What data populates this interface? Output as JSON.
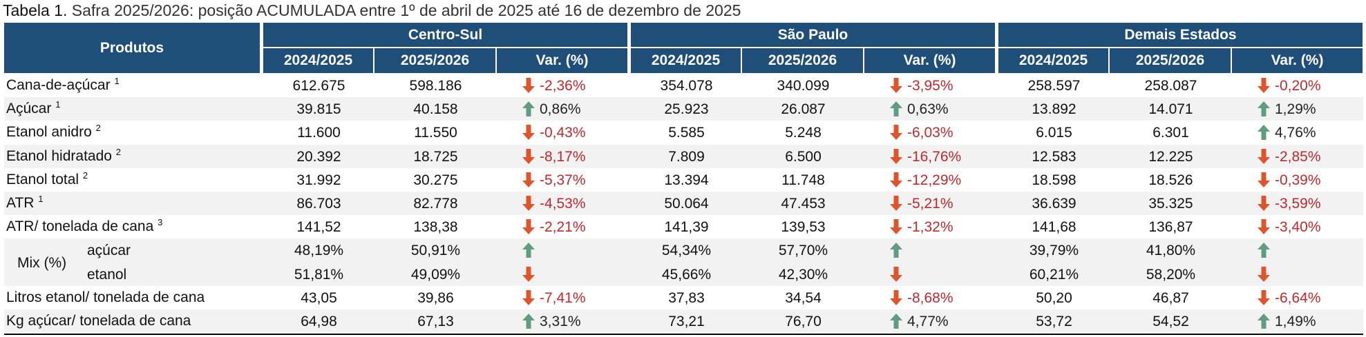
{
  "title_prefix": "Tabela 1.",
  "title": "Safra 2025/2026: posição ACUMULADA entre 1º de abril de 2025 até 16 de dezembro de 2025",
  "header": {
    "row_label": "Produtos",
    "groups": [
      {
        "name": "Centro-Sul",
        "columns": [
          "2024/2025",
          "2025/2026",
          "Var. (%)"
        ]
      },
      {
        "name": "São Paulo",
        "columns": [
          "2024/2025",
          "2025/2026",
          "Var. (%)"
        ]
      },
      {
        "name": "Demais Estados",
        "columns": [
          "2024/2025",
          "2025/2026",
          "Var. (%)"
        ]
      }
    ]
  },
  "rows": [
    {
      "label": "Cana-de-açúcar",
      "sup": "1",
      "cells": [
        {
          "a": "612.675",
          "b": "598.186",
          "var": "-2,36%",
          "trend": "down"
        },
        {
          "a": "354.078",
          "b": "340.099",
          "var": "-3,95%",
          "trend": "down"
        },
        {
          "a": "258.597",
          "b": "258.087",
          "var": "-0,20%",
          "trend": "down"
        }
      ]
    },
    {
      "label": "Açúcar",
      "sup": "1",
      "cells": [
        {
          "a": "39.815",
          "b": "40.158",
          "var": "0,86%",
          "trend": "up"
        },
        {
          "a": "25.923",
          "b": "26.087",
          "var": "0,63%",
          "trend": "up"
        },
        {
          "a": "13.892",
          "b": "14.071",
          "var": "1,29%",
          "trend": "up"
        }
      ]
    },
    {
      "label": "Etanol anidro",
      "sup": "2",
      "cells": [
        {
          "a": "11.600",
          "b": "11.550",
          "var": "-0,43%",
          "trend": "down"
        },
        {
          "a": "5.585",
          "b": "5.248",
          "var": "-6,03%",
          "trend": "down"
        },
        {
          "a": "6.015",
          "b": "6.301",
          "var": "4,76%",
          "trend": "up"
        }
      ]
    },
    {
      "label": "Etanol hidratado",
      "sup": "2",
      "cells": [
        {
          "a": "20.392",
          "b": "18.725",
          "var": "-8,17%",
          "trend": "down"
        },
        {
          "a": "7.809",
          "b": "6.500",
          "var": "-16,76%",
          "trend": "down"
        },
        {
          "a": "12.583",
          "b": "12.225",
          "var": "-2,85%",
          "trend": "down"
        }
      ]
    },
    {
      "label": "Etanol total",
      "sup": "2",
      "cells": [
        {
          "a": "31.992",
          "b": "30.275",
          "var": "-5,37%",
          "trend": "down"
        },
        {
          "a": "13.394",
          "b": "11.748",
          "var": "-12,29%",
          "trend": "down"
        },
        {
          "a": "18.598",
          "b": "18.526",
          "var": "-0,39%",
          "trend": "down"
        }
      ]
    },
    {
      "label": "ATR",
      "sup": "1",
      "cells": [
        {
          "a": "86.703",
          "b": "82.778",
          "var": "-4,53%",
          "trend": "down"
        },
        {
          "a": "50.064",
          "b": "47.453",
          "var": "-5,21%",
          "trend": "down"
        },
        {
          "a": "36.639",
          "b": "35.325",
          "var": "-3,59%",
          "trend": "down"
        }
      ]
    },
    {
      "label": "ATR/ tonelada de cana",
      "sup": "3",
      "cells": [
        {
          "a": "141,52",
          "b": "138,38",
          "var": "-2,21%",
          "trend": "down"
        },
        {
          "a": "141,39",
          "b": "139,53",
          "var": "-1,32%",
          "trend": "down"
        },
        {
          "a": "141,68",
          "b": "136,87",
          "var": "-3,40%",
          "trend": "down"
        }
      ]
    },
    {
      "label": "Mix (%)",
      "sub": [
        {
          "label": "açúcar",
          "cells": [
            {
              "a": "48,19%",
              "b": "50,91%",
              "trend": "up"
            },
            {
              "a": "54,34%",
              "b": "57,70%",
              "trend": "up"
            },
            {
              "a": "39,79%",
              "b": "41,80%",
              "trend": "up"
            }
          ]
        },
        {
          "label": "etanol",
          "cells": [
            {
              "a": "51,81%",
              "b": "49,09%",
              "trend": "down"
            },
            {
              "a": "45,66%",
              "b": "42,30%",
              "trend": "down"
            },
            {
              "a": "60,21%",
              "b": "58,20%",
              "trend": "down"
            }
          ]
        }
      ]
    },
    {
      "label": "Litros etanol/ tonelada de cana",
      "cells": [
        {
          "a": "43,05",
          "b": "39,86",
          "var": "-7,41%",
          "trend": "down"
        },
        {
          "a": "37,83",
          "b": "34,54",
          "var": "-8,68%",
          "trend": "down"
        },
        {
          "a": "50,20",
          "b": "46,87",
          "var": "-6,64%",
          "trend": "down"
        }
      ]
    },
    {
      "label": "Kg açúcar/ tonelada de cana",
      "cells": [
        {
          "a": "64,98",
          "b": "67,13",
          "var": "3,31%",
          "trend": "up"
        },
        {
          "a": "73,21",
          "b": "76,70",
          "var": "4,77%",
          "trend": "up"
        },
        {
          "a": "53,72",
          "b": "54,52",
          "var": "1,49%",
          "trend": "up"
        }
      ]
    }
  ]
}
